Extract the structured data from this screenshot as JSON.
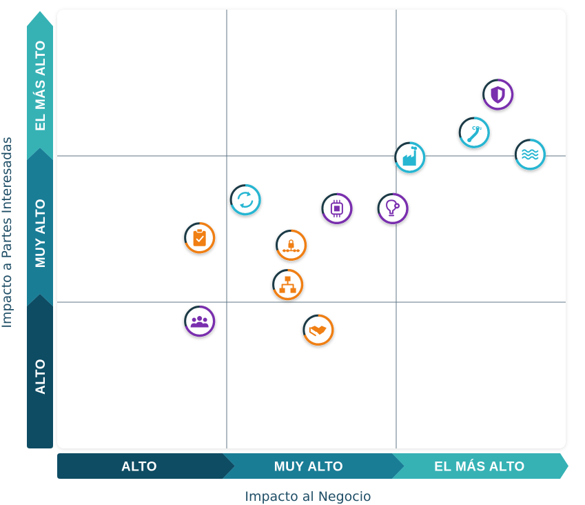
{
  "chart_data": {
    "type": "scatter",
    "title": "",
    "xlabel": "Impacto al Negocio",
    "ylabel": "Impacto a Partes Interesadas",
    "x_bands": [
      "ALTO",
      "MUY ALTO",
      "EL MÁS ALTO"
    ],
    "y_bands": [
      "ALTO",
      "MUY ALTO",
      "EL MÁS ALTO"
    ],
    "xlim": [
      0,
      3
    ],
    "ylim": [
      0,
      3
    ],
    "grid": true,
    "band_colors": [
      "#0e4c63",
      "#1a7d96",
      "#36b2b5"
    ],
    "icon_colors": {
      "orange": "#f07f14",
      "purple": "#7a2fae",
      "teal": "#27b6d2"
    },
    "points": [
      {
        "x": 2.6,
        "y": 2.42,
        "color": "purple",
        "icon": "shield-icon"
      },
      {
        "x": 2.46,
        "y": 2.16,
        "color": "teal",
        "icon": "footprint-icon"
      },
      {
        "x": 2.08,
        "y": 1.99,
        "color": "teal",
        "icon": "factory-icon"
      },
      {
        "x": 2.79,
        "y": 2.01,
        "color": "teal",
        "icon": "water-waves-icon"
      },
      {
        "x": 1.11,
        "y": 1.7,
        "color": "teal",
        "icon": "recycle-arrows-icon"
      },
      {
        "x": 1.65,
        "y": 1.64,
        "color": "purple",
        "icon": "chip-icon"
      },
      {
        "x": 1.98,
        "y": 1.64,
        "color": "purple",
        "icon": "lightbulb-gear-icon"
      },
      {
        "x": 0.84,
        "y": 1.44,
        "color": "orange",
        "icon": "clipboard-check-icon"
      },
      {
        "x": 1.38,
        "y": 1.39,
        "color": "orange",
        "icon": "network-lock-icon"
      },
      {
        "x": 1.36,
        "y": 1.12,
        "color": "orange",
        "icon": "org-chart-icon"
      },
      {
        "x": 0.84,
        "y": 0.87,
        "color": "purple",
        "icon": "people-group-icon"
      },
      {
        "x": 1.54,
        "y": 0.81,
        "color": "orange",
        "icon": "handshake-icon"
      }
    ]
  }
}
